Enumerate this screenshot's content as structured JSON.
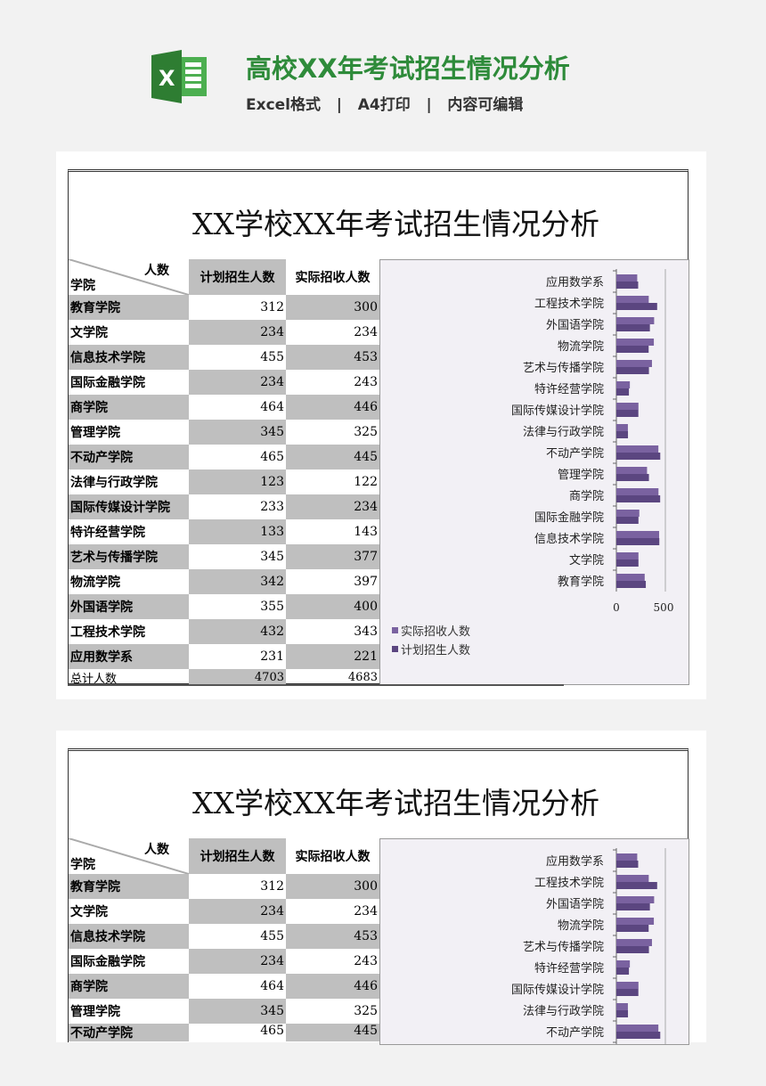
{
  "header": {
    "title": "高校XX年考试招生情况分析",
    "subtitle": "Excel格式   |   A4打印   |   内容可编辑",
    "logo_letter": "X"
  },
  "sheet": {
    "title": "XX学校XX年考试招生情况分析",
    "corner_top": "人数",
    "corner_bottom": "学院",
    "col_plan": "计划招生人数",
    "col_actual": "实际招收人数",
    "rows": [
      {
        "name": "教育学院",
        "plan": "312",
        "actual": "300"
      },
      {
        "name": "文学院",
        "plan": "234",
        "actual": "234"
      },
      {
        "name": "信息技术学院",
        "plan": "455",
        "actual": "453"
      },
      {
        "name": "国际金融学院",
        "plan": "234",
        "actual": "243"
      },
      {
        "name": "商学院",
        "plan": "464",
        "actual": "446"
      },
      {
        "name": "管理学院",
        "plan": "345",
        "actual": "325"
      },
      {
        "name": "不动产学院",
        "plan": "465",
        "actual": "445"
      },
      {
        "name": "法律与行政学院",
        "plan": "123",
        "actual": "122"
      },
      {
        "name": "国际传媒设计学院",
        "plan": "233",
        "actual": "234"
      },
      {
        "name": "特许经营学院",
        "plan": "133",
        "actual": "143"
      },
      {
        "name": "艺术与传播学院",
        "plan": "345",
        "actual": "377"
      },
      {
        "name": "物流学院",
        "plan": "342",
        "actual": "397"
      },
      {
        "name": "外国语学院",
        "plan": "355",
        "actual": "400"
      },
      {
        "name": "工程技术学院",
        "plan": "432",
        "actual": "343"
      },
      {
        "name": "应用数学系",
        "plan": "231",
        "actual": "221"
      }
    ],
    "total": {
      "name": "总计人数",
      "plan": "4703",
      "actual": "4683"
    }
  },
  "chart_data": {
    "type": "bar",
    "orientation": "horizontal",
    "categories": [
      "教育学院",
      "文学院",
      "信息技术学院",
      "国际金融学院",
      "商学院",
      "管理学院",
      "不动产学院",
      "法律与行政学院",
      "国际传媒设计学院",
      "特许经营学院",
      "艺术与传播学院",
      "物流学院",
      "外国语学院",
      "工程技术学院",
      "应用数学系"
    ],
    "series": [
      {
        "name": "实际招收人数",
        "values": [
          300,
          234,
          453,
          243,
          446,
          325,
          445,
          122,
          234,
          143,
          377,
          397,
          400,
          343,
          221
        ],
        "color": "#7a62a0"
      },
      {
        "name": "计划招生人数",
        "values": [
          312,
          234,
          455,
          234,
          464,
          345,
          465,
          123,
          233,
          133,
          345,
          342,
          355,
          432,
          231
        ],
        "color": "#5b4680"
      }
    ],
    "xlim": [
      0,
      500
    ],
    "xticks": [
      "0",
      "500"
    ],
    "legend": "bottom-left"
  }
}
